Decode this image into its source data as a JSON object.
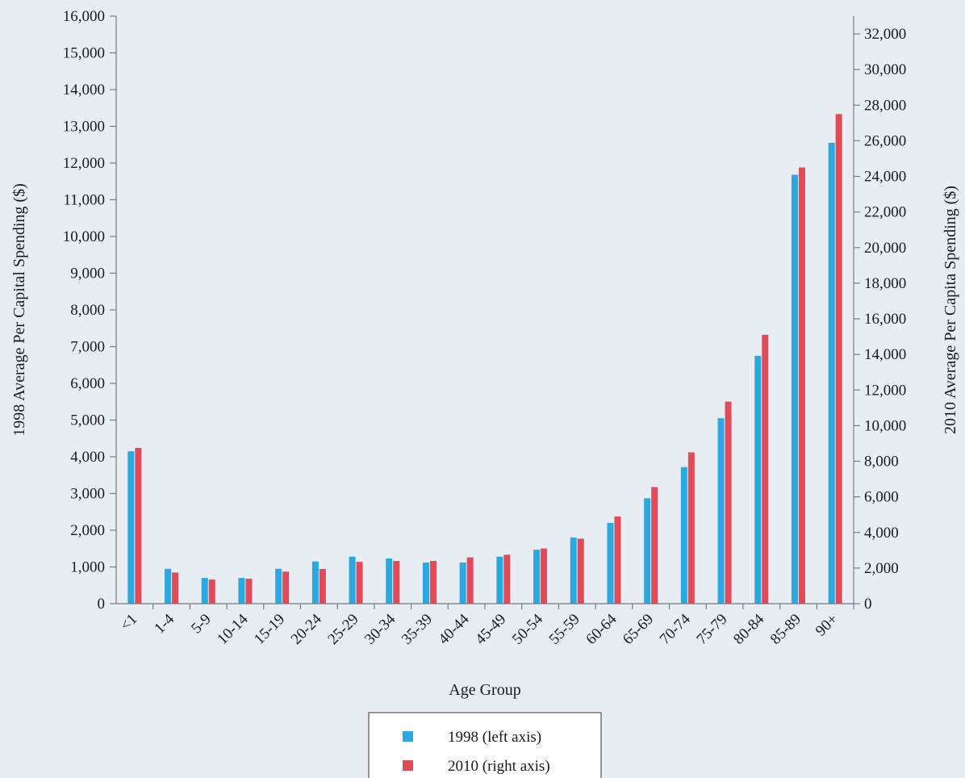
{
  "chart_data": {
    "type": "bar",
    "xlabel": "Age Group",
    "ylabel_left": "1998 Average Per Capital Spending ($)",
    "ylabel_right": "2010 Average Per Capita Spending ($)",
    "categories": [
      "<1",
      "1-4",
      "5-9",
      "10-14",
      "15-19",
      "20-24",
      "25-29",
      "30-34",
      "35-39",
      "40-44",
      "45-49",
      "50-54",
      "55-59",
      "60-64",
      "65-69",
      "70-74",
      "75-79",
      "80-84",
      "85-89",
      "90+"
    ],
    "ylim_left": [
      0,
      16000
    ],
    "ylim_right": [
      0,
      33000
    ],
    "yticks_left": [
      0,
      1000,
      2000,
      3000,
      4000,
      5000,
      6000,
      7000,
      8000,
      9000,
      10000,
      11000,
      12000,
      13000,
      14000,
      15000,
      16000
    ],
    "yticks_left_labels": [
      "0",
      "1,000",
      "2,000",
      "3,000",
      "4,000",
      "5,000",
      "6,000",
      "7,000",
      "8,000",
      "9,000",
      "10,000",
      "11,000",
      "12,000",
      "13,000",
      "14,000",
      "15,000",
      "16,000"
    ],
    "yticks_right": [
      0,
      2000,
      4000,
      6000,
      8000,
      10000,
      12000,
      14000,
      16000,
      18000,
      20000,
      22000,
      24000,
      26000,
      28000,
      30000,
      32000
    ],
    "yticks_right_labels": [
      "0",
      "2,000",
      "4,000",
      "6,000",
      "8,000",
      "10,000",
      "12,000",
      "14,000",
      "16,000",
      "18,000",
      "20,000",
      "22,000",
      "24,000",
      "26,000",
      "28,000",
      "30,000",
      "32,000"
    ],
    "grid": false,
    "legend_position": "bottom-center",
    "series": [
      {
        "name": "1998 (left axis)",
        "axis": "left",
        "color": "#2aa8e0",
        "values": [
          4150,
          950,
          700,
          700,
          950,
          1150,
          1280,
          1230,
          1120,
          1120,
          1280,
          1470,
          1800,
          2200,
          2870,
          3720,
          5050,
          6750,
          11680,
          12550
        ]
      },
      {
        "name": "2010 (right axis)",
        "axis": "right",
        "color": "#e04b5a",
        "values": [
          8750,
          1750,
          1350,
          1400,
          1800,
          1950,
          2350,
          2400,
          2400,
          2600,
          2750,
          3100,
          3650,
          4900,
          6550,
          8500,
          11350,
          15100,
          24500,
          27500
        ]
      }
    ]
  }
}
